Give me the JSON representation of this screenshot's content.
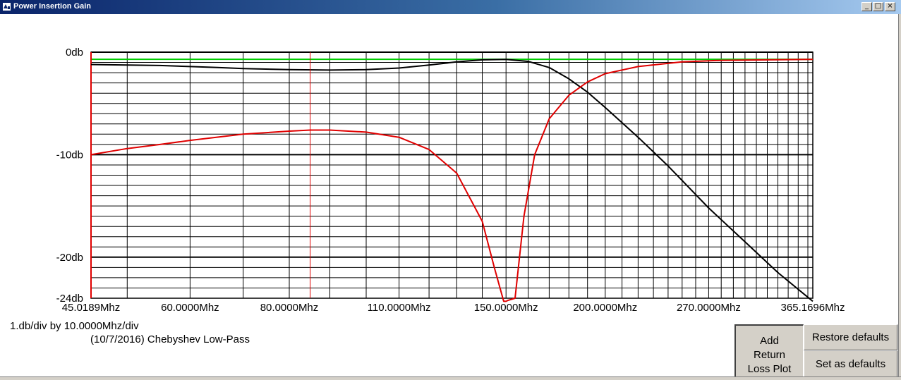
{
  "window": {
    "title": "Power Insertion Gain",
    "controls": [
      "_",
      "□",
      "×"
    ]
  },
  "info": {
    "scale": "1.db/div by 10.0000Mhz/div",
    "description": "(10/7/2016) Chebyshev Low-Pass"
  },
  "buttons": {
    "add_return_loss": "Add Return Loss Plot",
    "restore_defaults": "Restore defaults",
    "set_defaults": "Set as defaults"
  },
  "colors": {
    "gain": "#000000",
    "return_loss": "#e00000",
    "reference": "#00cc00",
    "marker": "#e00000"
  },
  "chart_data": {
    "type": "line",
    "x_scale": "log",
    "xlim": [
      45.0189,
      365.1696
    ],
    "ylim": [
      -24,
      0
    ],
    "y_ticks": [
      0,
      -10,
      -20,
      -24
    ],
    "y_tick_labels": [
      "0db",
      "-10db",
      "-20db",
      "-24db"
    ],
    "x_ticks": [
      45.0189,
      60,
      80,
      110,
      150,
      200,
      270,
      365.1696
    ],
    "x_tick_labels": [
      "45.0189Mhz",
      "60.0000Mhz",
      "80.0000Mhz",
      "110.0000Mhz",
      "150.0000Mhz",
      "200.0000Mhz",
      "270.0000Mhz",
      "365.1696Mhz"
    ],
    "grid": true,
    "marker_x": 85,
    "reference_db": -0.7,
    "series": [
      {
        "x": [
          45.0189,
          50,
          55,
          60,
          65,
          70,
          80,
          90,
          100,
          110,
          120,
          130,
          140,
          150,
          160,
          170,
          180,
          190,
          200,
          220,
          240,
          270,
          300,
          330,
          365.1696
        ],
        "y": [
          -1.2,
          -1.25,
          -1.3,
          -1.4,
          -1.5,
          -1.6,
          -1.7,
          -1.75,
          -1.7,
          -1.55,
          -1.25,
          -0.95,
          -0.75,
          -0.7,
          -0.9,
          -1.5,
          -2.6,
          -3.9,
          -5.4,
          -8.3,
          -11.1,
          -15.2,
          -18.5,
          -21.5,
          -24.3
        ]
      },
      {
        "x": [
          45.0189,
          50,
          55,
          60,
          70,
          80,
          85,
          90,
          100,
          110,
          120,
          130,
          140,
          145,
          149,
          150,
          151,
          154,
          158,
          163,
          170,
          180,
          190,
          200,
          220,
          250,
          280,
          320,
          365.1696
        ],
        "y": [
          -10,
          -9.4,
          -9,
          -8.6,
          -8,
          -7.7,
          -7.6,
          -7.6,
          -7.8,
          -8.3,
          -9.5,
          -11.8,
          -16.5,
          -21,
          -24.3,
          -24.3,
          -24.2,
          -24.0,
          -16,
          -10,
          -6.5,
          -4.2,
          -2.9,
          -2.1,
          -1.4,
          -0.95,
          -0.8,
          -0.75,
          -0.7
        ]
      }
    ]
  }
}
